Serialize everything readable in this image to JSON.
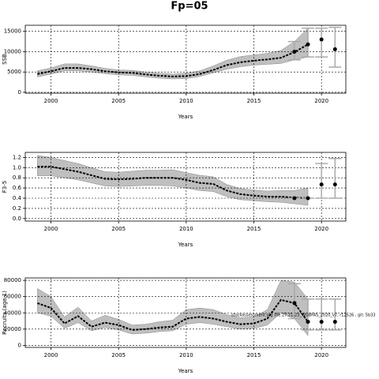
{
  "title": "Fp=05",
  "chart_data": [
    {
      "type": "line",
      "xlabel": "Years",
      "ylabel": "SSB",
      "grid": true,
      "xlim": [
        1998.1,
        2021.8
      ],
      "ylim": [
        -200,
        16500
      ],
      "xticks": [
        2000,
        2005,
        2010,
        2015,
        2020
      ],
      "yticks": [
        0,
        5000,
        10000,
        15000
      ],
      "color": "#000000",
      "band_color": "#aaaaaa",
      "errorbar_color": "#aaaaaa",
      "x": [
        1999,
        2000,
        2001,
        2002,
        2003,
        2004,
        2005,
        2006,
        2007,
        2008,
        2009,
        2010,
        2011,
        2012,
        2013,
        2014,
        2015,
        2016,
        2017,
        2018,
        2019
      ],
      "values": [
        4500,
        5200,
        6000,
        6000,
        5700,
        5200,
        4900,
        4800,
        4400,
        4100,
        3900,
        4000,
        4500,
        5500,
        6700,
        7400,
        7800,
        8100,
        8500,
        9900,
        11800
      ],
      "band_lower": [
        3800,
        4500,
        5300,
        5300,
        5000,
        4600,
        4300,
        4200,
        3800,
        3500,
        3300,
        3400,
        3900,
        4800,
        5700,
        6300,
        6700,
        6900,
        7100,
        8000,
        8700
      ],
      "band_upper": [
        5300,
        6000,
        7000,
        7000,
        6500,
        5900,
        5500,
        5400,
        5000,
        4700,
        4500,
        4700,
        5300,
        6500,
        7900,
        8800,
        9200,
        9600,
        10300,
        12500,
        15800
      ],
      "point_x": [
        2018,
        2019,
        2020,
        2021
      ],
      "point_values": [
        10000,
        11800,
        13000,
        10600
      ],
      "point_lower": [
        8000,
        8700,
        8700,
        6200
      ],
      "point_upper": [
        12500,
        15800,
        15800,
        16000
      ]
    },
    {
      "type": "line",
      "xlabel": "Years",
      "ylabel": "F3-5",
      "grid": true,
      "xlim": [
        1998.1,
        2021.8
      ],
      "ylim": [
        -0.05,
        1.3
      ],
      "xticks": [
        2000,
        2005,
        2010,
        2015,
        2020
      ],
      "yticks": [
        {
          "value": 0,
          "label": "0.0"
        },
        0.2,
        0.4,
        0.6,
        0.8,
        {
          "value": 1,
          "label": "1.0"
        },
        1.2
      ],
      "color": "#000000",
      "band_color": "#aaaaaa",
      "errorbar_color": "#aaaaaa",
      "x": [
        1999,
        2000,
        2001,
        2002,
        2003,
        2004,
        2005,
        2006,
        2007,
        2008,
        2009,
        2010,
        2011,
        2012,
        2013,
        2014,
        2015,
        2016,
        2017,
        2018,
        2019
      ],
      "values": [
        1.02,
        1.02,
        0.97,
        0.92,
        0.85,
        0.78,
        0.77,
        0.78,
        0.8,
        0.8,
        0.8,
        0.76,
        0.7,
        0.68,
        0.55,
        0.48,
        0.45,
        0.43,
        0.43,
        0.41,
        0.4
      ],
      "band_lower": [
        0.84,
        0.84,
        0.8,
        0.76,
        0.7,
        0.64,
        0.63,
        0.64,
        0.65,
        0.65,
        0.64,
        0.6,
        0.55,
        0.53,
        0.43,
        0.37,
        0.35,
        0.33,
        0.32,
        0.29,
        0.26
      ],
      "band_upper": [
        1.24,
        1.2,
        1.14,
        1.08,
        1.0,
        0.92,
        0.91,
        0.93,
        0.95,
        0.95,
        0.96,
        0.9,
        0.85,
        0.82,
        0.67,
        0.59,
        0.56,
        0.54,
        0.55,
        0.55,
        0.6
      ],
      "point_x": [
        2018,
        2019,
        2020,
        2021
      ],
      "point_values": [
        0.4,
        0.4,
        0.67,
        0.67
      ],
      "point_lower": [
        0.4,
        0.4,
        0.4,
        0.4
      ],
      "point_upper": [
        0.4,
        0.4,
        1.08,
        1.18
      ]
    },
    {
      "type": "line",
      "xlabel": "Years",
      "ylabel": "Recruits (age 1)",
      "grid": true,
      "annotation": "stockassessment.org (fle.27.21-23_WGBFAS_2020_v7, r12526 , git: 5b33",
      "xlim": [
        1998.1,
        2021.8
      ],
      "ylim": [
        -2500,
        83000
      ],
      "xticks": [
        2000,
        2005,
        2010,
        2015,
        2020
      ],
      "yticks": [
        0,
        20000,
        40000,
        60000,
        80000
      ],
      "color": "#000000",
      "band_color": "#aaaaaa",
      "errorbar_color": "#aaaaaa",
      "x": [
        1999,
        2000,
        2001,
        2002,
        2003,
        2004,
        2005,
        2006,
        2007,
        2008,
        2009,
        2010,
        2011,
        2012,
        2013,
        2014,
        2015,
        2016,
        2017,
        2018,
        2019
      ],
      "values": [
        52000,
        46000,
        27000,
        36000,
        23000,
        28000,
        25000,
        19000,
        20000,
        22000,
        23000,
        33000,
        35000,
        33000,
        29000,
        26000,
        27000,
        33000,
        56000,
        52000,
        29000
      ],
      "band_lower": [
        40000,
        36000,
        21000,
        28000,
        18000,
        22000,
        19000,
        14000,
        15000,
        17000,
        18000,
        26000,
        28000,
        26000,
        23000,
        20000,
        21000,
        25000,
        40000,
        33000,
        12000
      ],
      "band_upper": [
        70000,
        60000,
        35000,
        47000,
        30000,
        37000,
        32000,
        25000,
        26000,
        29000,
        31000,
        44000,
        46000,
        44000,
        38000,
        34000,
        35000,
        44000,
        80000,
        78000,
        57000
      ],
      "point_x": [
        2018,
        2019,
        2020,
        2021
      ],
      "point_values": [
        52000,
        29000,
        29000,
        29000
      ],
      "point_lower": [
        33000,
        19000,
        19000,
        19000
      ],
      "point_upper": [
        76000,
        57000,
        57000,
        57000
      ]
    }
  ]
}
